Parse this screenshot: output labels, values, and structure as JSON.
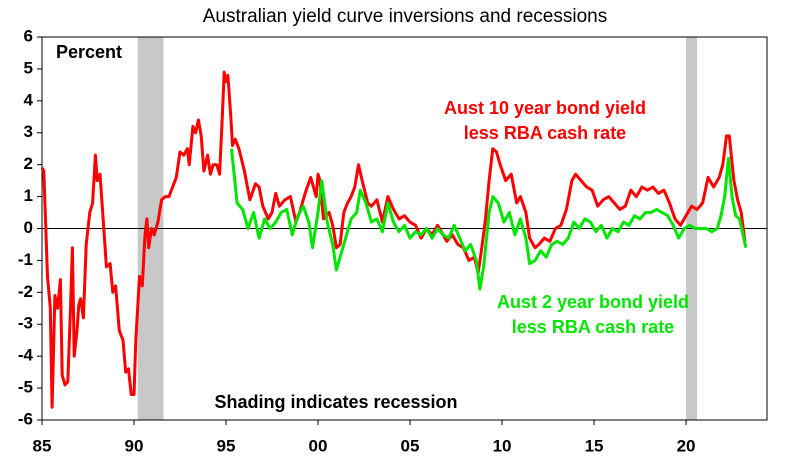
{
  "chart_data": {
    "type": "line",
    "title": "Australian yield curve inversions and recessions",
    "y_label": "Percent",
    "annotation": "Shading indicates recession",
    "xlim": [
      1985,
      2024.4
    ],
    "xticks": [
      {
        "value": 1985,
        "label": "85"
      },
      {
        "value": 1990,
        "label": "90"
      },
      {
        "value": 1995,
        "label": "95"
      },
      {
        "value": 2000,
        "label": "00"
      },
      {
        "value": 2005,
        "label": "05"
      },
      {
        "value": 2010,
        "label": "10"
      },
      {
        "value": 2015,
        "label": "15"
      },
      {
        "value": 2020,
        "label": "20"
      }
    ],
    "ylim": [
      -6,
      6
    ],
    "yticks": [
      -6,
      -5,
      -4,
      -3,
      -2,
      -1,
      0,
      1,
      2,
      3,
      4,
      5,
      6
    ],
    "recessions": [
      {
        "start": 1990.2,
        "end": 1991.6,
        "color": "#c8c8c8"
      },
      {
        "start": 2020.0,
        "end": 2020.6,
        "color": "#c8c8c8"
      }
    ],
    "series": [
      {
        "name": "Aust 10 year bond yield less RBA cash rate",
        "color": "#ff0000",
        "x": [
          1985.0,
          1985.1,
          1985.3,
          1985.45,
          1985.55,
          1985.7,
          1985.85,
          1986.0,
          1986.1,
          1986.25,
          1986.4,
          1986.55,
          1986.65,
          1986.75,
          1986.9,
          1987.0,
          1987.1,
          1987.25,
          1987.4,
          1987.6,
          1987.75,
          1987.9,
          1988.0,
          1988.15,
          1988.3,
          1988.5,
          1988.7,
          1988.85,
          1989.0,
          1989.2,
          1989.4,
          1989.55,
          1989.7,
          1989.85,
          1990.0,
          1990.1,
          1990.3,
          1990.45,
          1990.6,
          1990.7,
          1990.8,
          1990.95,
          1991.1,
          1991.3,
          1991.5,
          1991.7,
          1991.9,
          1992.1,
          1992.3,
          1992.5,
          1992.7,
          1992.9,
          1993.0,
          1993.2,
          1993.35,
          1993.5,
          1993.65,
          1993.8,
          1994.0,
          1994.15,
          1994.3,
          1994.5,
          1994.65,
          1994.8,
          1994.9,
          1995.0,
          1995.1,
          1995.25,
          1995.35,
          1995.5,
          1995.7,
          1996.0,
          1996.3,
          1996.6,
          1996.8,
          1997.0,
          1997.3,
          1997.5,
          1997.7,
          1997.9,
          1998.2,
          1998.5,
          1998.8,
          1999.0,
          1999.3,
          1999.6,
          1999.9,
          2000.0,
          2000.1,
          2000.3,
          2000.6,
          2000.8,
          2001.0,
          2001.2,
          2001.4,
          2001.6,
          2001.8,
          2002.0,
          2002.2,
          2002.4,
          2002.7,
          2002.9,
          2003.2,
          2003.5,
          2003.8,
          2004.1,
          2004.4,
          2004.7,
          2005.0,
          2005.3,
          2005.6,
          2005.9,
          2006.2,
          2006.5,
          2006.8,
          2007.0,
          2007.3,
          2007.6,
          2007.9,
          2008.2,
          2008.5,
          2008.7,
          2008.9,
          2009.1,
          2009.3,
          2009.5,
          2009.7,
          2009.9,
          2010.2,
          2010.5,
          2010.8,
          2011.0,
          2011.3,
          2011.5,
          2011.8,
          2012.0,
          2012.3,
          2012.6,
          2012.9,
          2013.2,
          2013.5,
          2013.8,
          2014.0,
          2014.3,
          2014.6,
          2014.9,
          2015.2,
          2015.5,
          2015.8,
          2016.1,
          2016.4,
          2016.7,
          2017.0,
          2017.3,
          2017.6,
          2017.9,
          2018.2,
          2018.5,
          2018.8,
          2019.1,
          2019.4,
          2019.7,
          2020.0,
          2020.3,
          2020.6,
          2020.9,
          2021.2,
          2021.5,
          2021.8,
          2022.0,
          2022.2,
          2022.35,
          2022.6,
          2022.8,
          2023.0,
          2023.2
        ],
        "values": [
          1.9,
          1.8,
          -1.5,
          -2.5,
          -5.6,
          -2.1,
          -2.5,
          -1.6,
          -4.6,
          -4.9,
          -4.8,
          -2.5,
          -0.6,
          -4.0,
          -3.2,
          -2.4,
          -2.2,
          -2.8,
          -0.5,
          0.5,
          0.8,
          2.3,
          1.5,
          1.7,
          0.5,
          -1.2,
          -1.1,
          -2.0,
          -1.8,
          -3.2,
          -3.5,
          -4.5,
          -4.4,
          -5.2,
          -5.2,
          -3.5,
          -1.5,
          -1.8,
          -0.2,
          0.3,
          -0.6,
          0.0,
          -0.2,
          0.2,
          0.9,
          1.0,
          1.0,
          1.3,
          1.6,
          2.4,
          2.3,
          2.5,
          2.0,
          3.2,
          3.0,
          3.4,
          2.9,
          1.8,
          2.3,
          1.7,
          2.0,
          2.0,
          1.7,
          3.5,
          4.9,
          4.6,
          4.8,
          3.6,
          2.6,
          2.8,
          2.5,
          1.8,
          0.9,
          1.4,
          1.3,
          0.7,
          0.3,
          0.5,
          1.1,
          0.7,
          0.9,
          1.0,
          0.2,
          0.5,
          1.1,
          1.6,
          1.0,
          1.7,
          1.5,
          0.3,
          0.5,
          0.1,
          -0.6,
          -0.5,
          0.5,
          0.8,
          1.0,
          1.3,
          2.0,
          1.5,
          0.8,
          0.7,
          0.9,
          0.2,
          1.0,
          0.6,
          0.3,
          0.4,
          0.2,
          0.1,
          -0.3,
          0.0,
          -0.2,
          0.1,
          -0.2,
          -0.4,
          -0.2,
          -0.5,
          -0.6,
          -1.0,
          -0.9,
          -1.4,
          -0.6,
          0.3,
          1.5,
          2.5,
          2.4,
          2.0,
          1.5,
          1.7,
          0.8,
          1.0,
          0.5,
          -0.3,
          -0.6,
          -0.5,
          -0.3,
          -0.4,
          0.0,
          0.1,
          0.6,
          1.5,
          1.7,
          1.5,
          1.3,
          1.2,
          0.7,
          0.9,
          1.0,
          0.8,
          0.6,
          0.7,
          1.2,
          1.0,
          1.3,
          1.2,
          1.3,
          1.1,
          1.2,
          0.8,
          0.3,
          0.1,
          0.4,
          0.7,
          0.6,
          0.8,
          1.6,
          1.3,
          1.6,
          2.0,
          2.9,
          2.9,
          1.5,
          0.9,
          0.5,
          -0.4
        ]
      },
      {
        "name": "Aust 2 year bond yield less RBA cash rate",
        "color": "#00e600",
        "x": [
          1995.3,
          1995.6,
          1995.9,
          1996.2,
          1996.5,
          1996.8,
          1997.1,
          1997.4,
          1997.7,
          1998.0,
          1998.3,
          1998.6,
          1998.9,
          1999.2,
          1999.5,
          1999.7,
          2000.0,
          2000.2,
          2000.5,
          2000.8,
          2001.0,
          2001.2,
          2001.5,
          2001.8,
          2002.1,
          2002.3,
          2002.6,
          2002.9,
          2003.2,
          2003.5,
          2003.8,
          2004.1,
          2004.4,
          2004.7,
          2005.0,
          2005.3,
          2005.6,
          2005.9,
          2006.2,
          2006.5,
          2006.8,
          2007.1,
          2007.4,
          2007.7,
          2008.0,
          2008.3,
          2008.6,
          2008.8,
          2009.0,
          2009.3,
          2009.5,
          2009.8,
          2010.1,
          2010.4,
          2010.7,
          2011.0,
          2011.3,
          2011.5,
          2011.8,
          2012.1,
          2012.4,
          2012.7,
          2013.0,
          2013.3,
          2013.6,
          2013.9,
          2014.2,
          2014.5,
          2014.8,
          2015.1,
          2015.4,
          2015.7,
          2016.0,
          2016.3,
          2016.6,
          2016.9,
          2017.2,
          2017.5,
          2017.8,
          2018.1,
          2018.4,
          2018.7,
          2019.0,
          2019.3,
          2019.6,
          2019.9,
          2020.2,
          2020.5,
          2020.8,
          2021.1,
          2021.4,
          2021.7,
          2021.9,
          2022.1,
          2022.3,
          2022.5,
          2022.7,
          2022.9,
          2023.1,
          2023.25
        ],
        "values": [
          2.5,
          0.8,
          0.6,
          0.0,
          0.5,
          -0.3,
          0.3,
          0.0,
          0.2,
          0.5,
          0.6,
          -0.2,
          0.4,
          0.7,
          0.2,
          -0.6,
          0.5,
          1.5,
          0.2,
          -0.5,
          -1.3,
          -0.9,
          -0.3,
          0.3,
          0.5,
          1.2,
          0.8,
          0.2,
          0.3,
          -0.1,
          0.8,
          0.2,
          -0.1,
          0.1,
          -0.3,
          -0.1,
          -0.2,
          0.0,
          -0.3,
          0.0,
          -0.2,
          -0.3,
          0.1,
          -0.3,
          -0.7,
          -0.5,
          -1.0,
          -1.9,
          -1.2,
          0.5,
          1.0,
          0.8,
          0.2,
          0.5,
          -0.2,
          0.3,
          -0.3,
          -1.1,
          -1.0,
          -0.7,
          -0.9,
          -0.5,
          -0.4,
          -0.5,
          -0.3,
          0.2,
          0.0,
          0.3,
          0.2,
          -0.1,
          0.1,
          -0.3,
          0.0,
          -0.1,
          0.2,
          0.1,
          0.4,
          0.3,
          0.5,
          0.5,
          0.6,
          0.5,
          0.4,
          0.1,
          -0.3,
          0.0,
          0.1,
          0.0,
          0.0,
          0.0,
          -0.1,
          0.0,
          0.4,
          1.0,
          2.2,
          1.0,
          0.4,
          0.3,
          -0.2,
          -0.6
        ]
      }
    ]
  }
}
